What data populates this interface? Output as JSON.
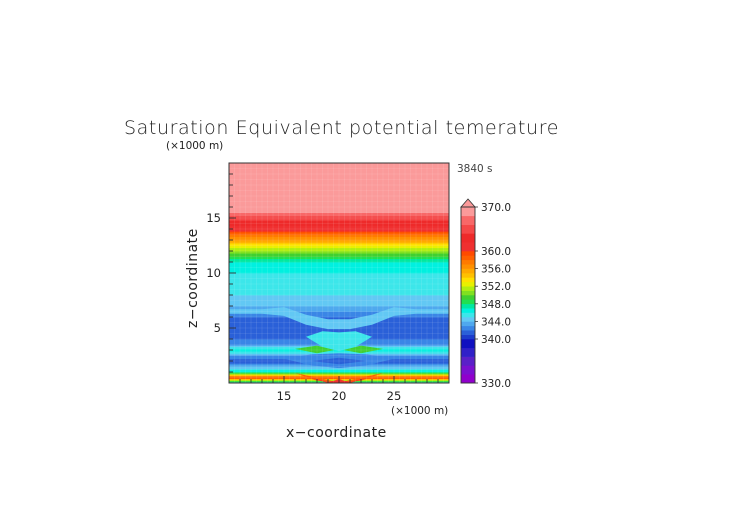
{
  "chart_data": {
    "type": "heatmap",
    "title": "Saturation Equivalent potential temerature",
    "time_label": "3840 s",
    "xlabel": "x−coordinate",
    "ylabel": "z−coordinate",
    "x_unit": "(×1000 m)",
    "y_unit": "(×1000 m)",
    "xlim": [
      10,
      30
    ],
    "ylim": [
      0,
      20
    ],
    "x_ticks": [
      15,
      20,
      25
    ],
    "y_ticks": [
      5,
      10,
      15
    ],
    "colorbar": {
      "min": 330.0,
      "max": 370.0,
      "labels": [
        "370.0",
        "360.0",
        "356.0",
        "352.0",
        "348.0",
        "344.0",
        "340.0",
        "330.0"
      ],
      "label_values": [
        370,
        360,
        356,
        352,
        348,
        344,
        340,
        330
      ],
      "extend": "max",
      "levels": [
        330,
        332,
        334,
        336,
        338,
        340,
        341,
        342,
        343,
        344,
        345,
        346,
        347,
        348,
        349,
        350,
        351,
        352,
        353,
        354,
        355,
        356,
        357,
        358,
        359,
        360,
        362,
        364,
        366,
        368,
        370
      ],
      "colors": [
        "#9000cc",
        "#7a10d0",
        "#5a20c8",
        "#3020c8",
        "#1010c0",
        "#1c3ccc",
        "#2a60d8",
        "#3a86e6",
        "#4fa8ee",
        "#62c8f4",
        "#3ce6ea",
        "#00f0e0",
        "#00e8a0",
        "#20e050",
        "#40d030",
        "#80e020",
        "#b0ee10",
        "#e8f000",
        "#ffe000",
        "#ffc000",
        "#ffa800",
        "#ff9000",
        "#ff7a00",
        "#ff6000",
        "#ff4a00",
        "#f03030",
        "#ee2a2a",
        "#f44848",
        "#f86868",
        "#fb9a9a"
      ]
    },
    "vertical_profile_z": [
      0,
      0.5,
      1.0,
      1.5,
      2.0,
      2.5,
      3.0,
      3.5,
      4.0,
      5.0,
      6.0,
      7.0,
      8.0,
      9.0,
      10.0,
      11.0,
      12.0,
      12.5,
      13.0,
      13.5,
      14.0,
      14.5,
      15.0,
      15.5,
      16.0,
      17.0,
      20.0
    ],
    "vertical_profile_value": [
      343,
      360,
      347,
      344,
      341,
      343,
      347,
      343,
      342,
      341,
      342,
      344,
      345,
      345,
      346,
      347,
      351,
      353,
      356,
      358,
      361,
      363,
      365,
      368,
      370,
      371,
      371
    ]
  }
}
